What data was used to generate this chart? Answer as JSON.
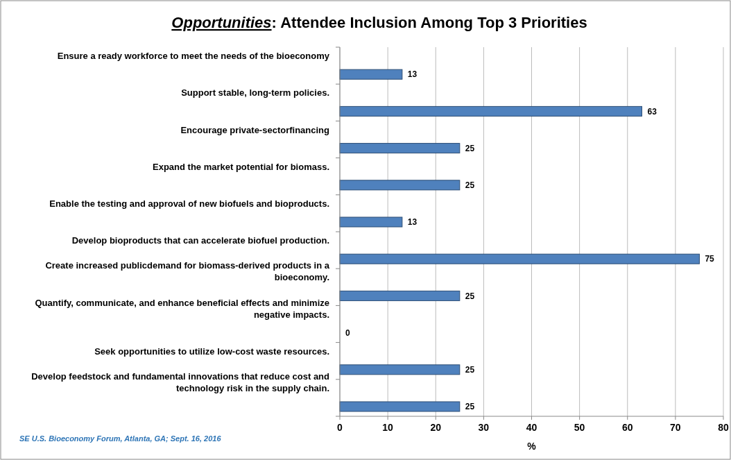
{
  "chart_data": {
    "type": "bar",
    "orientation": "horizontal",
    "title": "Opportunities: Attendee Inclusion Among Top 3 Priorities",
    "xlabel": "%",
    "categories": [
      "Ensure a ready workforce to meet the needs of the bioeconomy",
      "Support stable, long-term policies.",
      "Encourage private-sectorfinancing",
      "Expand the market potential for biomass.",
      "Enable the testing and approval of new biofuels and bioproducts.",
      "Develop bioproducts that can accelerate biofuel production.",
      "Create increased publicdemand for biomass-derived products in a bioeconomy.",
      "Quantify, communicate, and enhance beneficial effects and minimize negative impacts.",
      "Seek opportunities to utilize low-cost waste resources.",
      "Develop feedstock and fundamental innovations that reduce cost and technology risk in the supply chain."
    ],
    "values": [
      13,
      63,
      25,
      25,
      13,
      75,
      25,
      0,
      25,
      25
    ],
    "color": "#4f81bd",
    "data_labels": true,
    "xlim": [
      0,
      80
    ],
    "xticks": [
      0,
      10,
      20,
      30,
      40,
      50,
      60,
      70,
      80
    ],
    "grid": "x",
    "annotations": [
      "SE U.S. Bioeconomy Forum, Atlanta, GA; Sept. 16, 2016"
    ]
  }
}
